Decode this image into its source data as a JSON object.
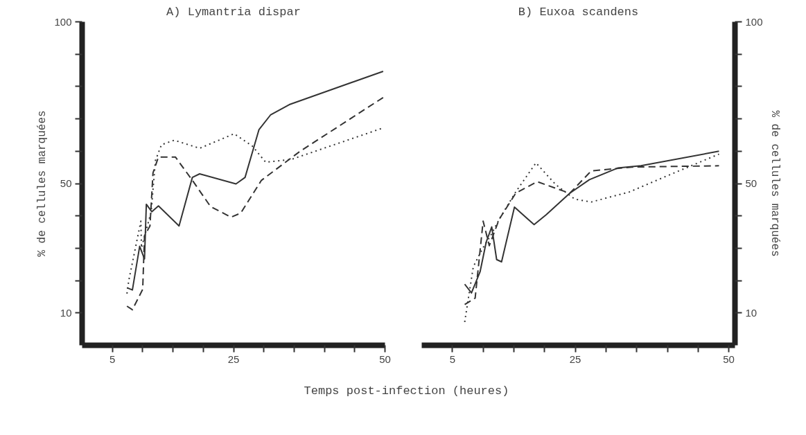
{
  "chart_data": [
    {
      "type": "line",
      "title": "A) Lymantria dispar",
      "xlabel": "Temps post-infection (heures)",
      "ylabel": "% de cellules marquées",
      "xlim": [
        0,
        50
      ],
      "xticks": [
        {
          "value": 5,
          "label": "5"
        },
        {
          "value": 10,
          "label": null
        },
        {
          "value": 15,
          "label": null
        },
        {
          "value": 20,
          "label": null
        },
        {
          "value": 25,
          "label": "25"
        },
        {
          "value": 30,
          "label": null
        },
        {
          "value": 35,
          "label": null
        },
        {
          "value": 40,
          "label": null
        },
        {
          "value": 45,
          "label": null
        },
        {
          "value": 50,
          "label": "50"
        }
      ],
      "ylim": [
        0,
        100
      ],
      "yticks": [
        {
          "value": 10,
          "label": "10"
        },
        {
          "value": 20,
          "label": null
        },
        {
          "value": 30,
          "label": null
        },
        {
          "value": 40,
          "label": null
        },
        {
          "value": 50,
          "label": "50"
        },
        {
          "value": 60,
          "label": null
        },
        {
          "value": 70,
          "label": null
        },
        {
          "value": 80,
          "label": null
        },
        {
          "value": 90,
          "label": null
        },
        {
          "value": 100,
          "label": "100"
        }
      ],
      "series": [
        {
          "color": "#333333",
          "line_style": "solid",
          "x": [
            7.4,
            8.3,
            9.5,
            10.3,
            10.6,
            11.5,
            12.6,
            16.0,
            18.2,
            19.4,
            25.4,
            26.9,
            29.2,
            31.1,
            34.2,
            49.7
          ],
          "values": [
            17.8,
            17.1,
            30.6,
            26.7,
            43.6,
            41.3,
            43.1,
            36.9,
            51.9,
            53.0,
            49.9,
            51.9,
            66.7,
            71.2,
            74.4,
            84.7
          ]
        },
        {
          "color": "#333333",
          "line_style": "dashed",
          "x": [
            7.4,
            8.3,
            10.0,
            10.3,
            11.2,
            11.7,
            12.6,
            15.4,
            18.2,
            21.2,
            24.6,
            26.2,
            29.6,
            36.0,
            49.7
          ],
          "values": [
            12.1,
            11.0,
            17.3,
            33.9,
            36.9,
            53.3,
            58.2,
            58.2,
            51.0,
            42.9,
            39.6,
            40.9,
            51.0,
            60.0,
            76.6
          ]
        },
        {
          "color": "#333333",
          "line_style": "dotted",
          "x": [
            7.4,
            7.7,
            9.7,
            9.8,
            11.4,
            12.1,
            13.1,
            15.2,
            19.4,
            25.1,
            28.1,
            30.3,
            34.6,
            49.7
          ],
          "values": [
            16.0,
            20.0,
            38.4,
            30.1,
            41.3,
            57.1,
            62.0,
            63.4,
            60.9,
            65.4,
            61.6,
            56.6,
            57.5,
            67.2
          ]
        }
      ]
    },
    {
      "type": "line",
      "title": "B) Euxoa scandens",
      "y2label": "% de cellules marquées",
      "xlim": [
        0,
        51
      ],
      "xticks": [
        {
          "value": 5,
          "label": "5"
        },
        {
          "value": 10,
          "label": null
        },
        {
          "value": 15,
          "label": null
        },
        {
          "value": 20,
          "label": null
        },
        {
          "value": 25,
          "label": "25"
        },
        {
          "value": 30,
          "label": null
        },
        {
          "value": 35,
          "label": null
        },
        {
          "value": 40,
          "label": null
        },
        {
          "value": 45,
          "label": null
        },
        {
          "value": 50,
          "label": "50"
        }
      ],
      "y2lim": [
        0,
        100
      ],
      "y2ticks": [
        {
          "value": 10,
          "label": "10"
        },
        {
          "value": 20,
          "label": null
        },
        {
          "value": 30,
          "label": null
        },
        {
          "value": 40,
          "label": null
        },
        {
          "value": 50,
          "label": "50"
        },
        {
          "value": 60,
          "label": null
        },
        {
          "value": 70,
          "label": null
        },
        {
          "value": 80,
          "label": null
        },
        {
          "value": 90,
          "label": null
        },
        {
          "value": 100,
          "label": "100"
        }
      ],
      "series": [
        {
          "color": "#333333",
          "line_style": "solid",
          "axis": "y2",
          "x": [
            7.0,
            8.1,
            9.5,
            10.5,
            11.4,
            12.2,
            13.0,
            15.1,
            18.3,
            20.3,
            24.1,
            27.3,
            31.9,
            35.7,
            48.4
          ],
          "values": [
            18.9,
            16.2,
            22.7,
            31.9,
            36.6,
            26.5,
            25.8,
            42.7,
            37.3,
            40.4,
            47.0,
            51.2,
            54.8,
            55.5,
            60.0
          ]
        },
        {
          "color": "#333333",
          "line_style": "dashed",
          "axis": "y2",
          "x": [
            7.0,
            8.7,
            10.0,
            11.0,
            12.6,
            15.3,
            18.8,
            24.1,
            27.6,
            34.2,
            48.4
          ],
          "values": [
            12.6,
            14.6,
            38.4,
            30.8,
            38.9,
            47.0,
            50.6,
            47.0,
            53.9,
            55.1,
            55.5
          ]
        },
        {
          "color": "#333333",
          "line_style": "dotted",
          "axis": "y2",
          "x": [
            7.0,
            7.4,
            8.4,
            9.9,
            11.3,
            12.6,
            15.3,
            18.6,
            21.8,
            24.9,
            27.6,
            33.8,
            39.6,
            48.4
          ],
          "values": [
            7.2,
            12.1,
            24.3,
            29.9,
            34.2,
            38.9,
            47.4,
            56.4,
            49.7,
            45.2,
            44.3,
            47.4,
            52.1,
            59.1
          ]
        }
      ]
    }
  ]
}
